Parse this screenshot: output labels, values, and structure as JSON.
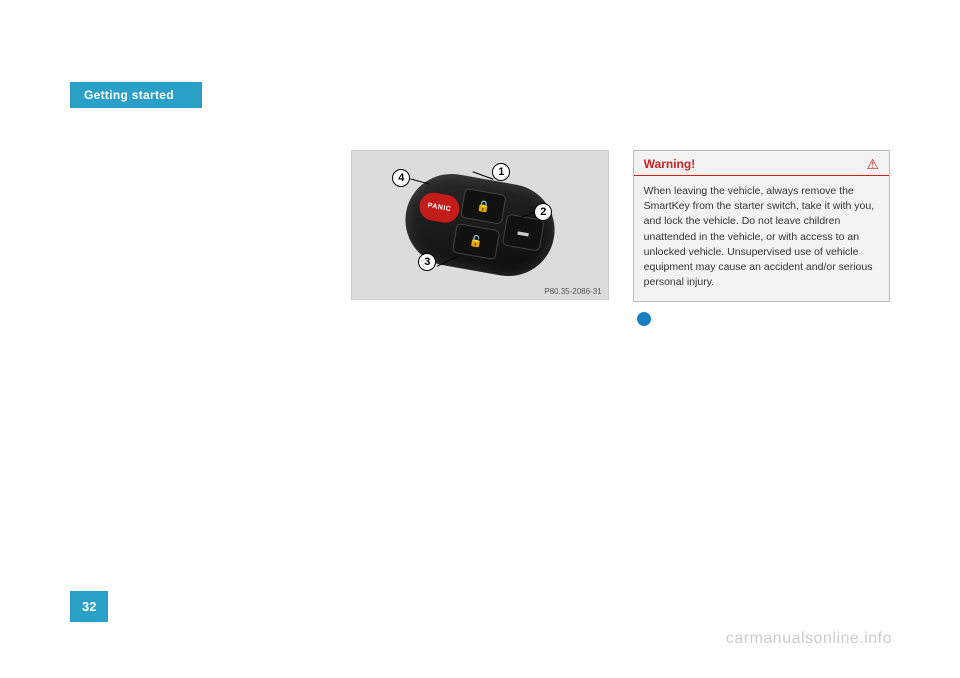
{
  "header": {
    "section_tab": "Getting started"
  },
  "figure": {
    "ref": "P80.35-2086-31",
    "callouts": {
      "c1": "1",
      "c2": "2",
      "c3": "3",
      "c4": "4"
    },
    "panic_label": "PANIC"
  },
  "warning": {
    "title": "Warning!",
    "icon": "⚠",
    "body": "When leaving the vehicle, always remove the SmartKey from the starter switch, take it with you, and lock the vehicle. Do not leave children unattended in the vehicle, or with access to an unlocked vehicle. Unsupervised use of vehicle equipment may cause an accident and/or serious personal injury."
  },
  "page_number": "32",
  "watermark": "carmanualsonline.info",
  "colors": {
    "tab_bg": "#2aa0c8",
    "warning_accent": "#cc2222",
    "figure_bg": "#dcdcdc",
    "info_icon": "#1a7fc0",
    "watermark": "#cccccc"
  }
}
